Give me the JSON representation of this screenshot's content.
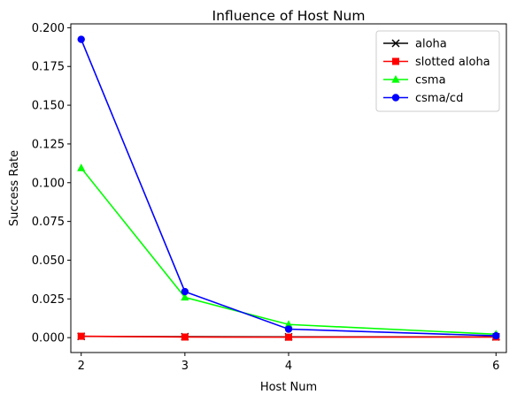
{
  "chart_data": {
    "type": "line",
    "title": "Influence of Host Num",
    "xlabel": "Host Num",
    "ylabel": "Success Rate",
    "x": [
      2,
      3,
      4,
      6
    ],
    "xticks": [
      "2",
      "3",
      "4",
      "6"
    ],
    "xlim": [
      1.9,
      6.1
    ],
    "ylim": [
      -0.0096,
      0.2025
    ],
    "yticks": [
      "0.000",
      "0.025",
      "0.050",
      "0.075",
      "0.100",
      "0.125",
      "0.150",
      "0.175",
      "0.200"
    ],
    "ytick_values": [
      0,
      0.025,
      0.05,
      0.075,
      0.1,
      0.125,
      0.15,
      0.175,
      0.2
    ],
    "grid": false,
    "legend_position": "top-right",
    "series": [
      {
        "name": "aloha",
        "color": "#000000",
        "marker": "x",
        "values": [
          0.0008,
          0.0006,
          0.0005,
          0.0005
        ]
      },
      {
        "name": "slotted aloha",
        "color": "#ff0000",
        "marker": "square",
        "values": [
          0.0009,
          0.0004,
          0.0003,
          0.0004
        ]
      },
      {
        "name": "csma",
        "color": "#00ff00",
        "marker": "triangle",
        "values": [
          0.1095,
          0.026,
          0.0085,
          0.0022
        ]
      },
      {
        "name": "csma/cd",
        "color": "#0000ff",
        "marker": "circle",
        "values": [
          0.1925,
          0.0297,
          0.0055,
          0.0012
        ]
      }
    ]
  }
}
